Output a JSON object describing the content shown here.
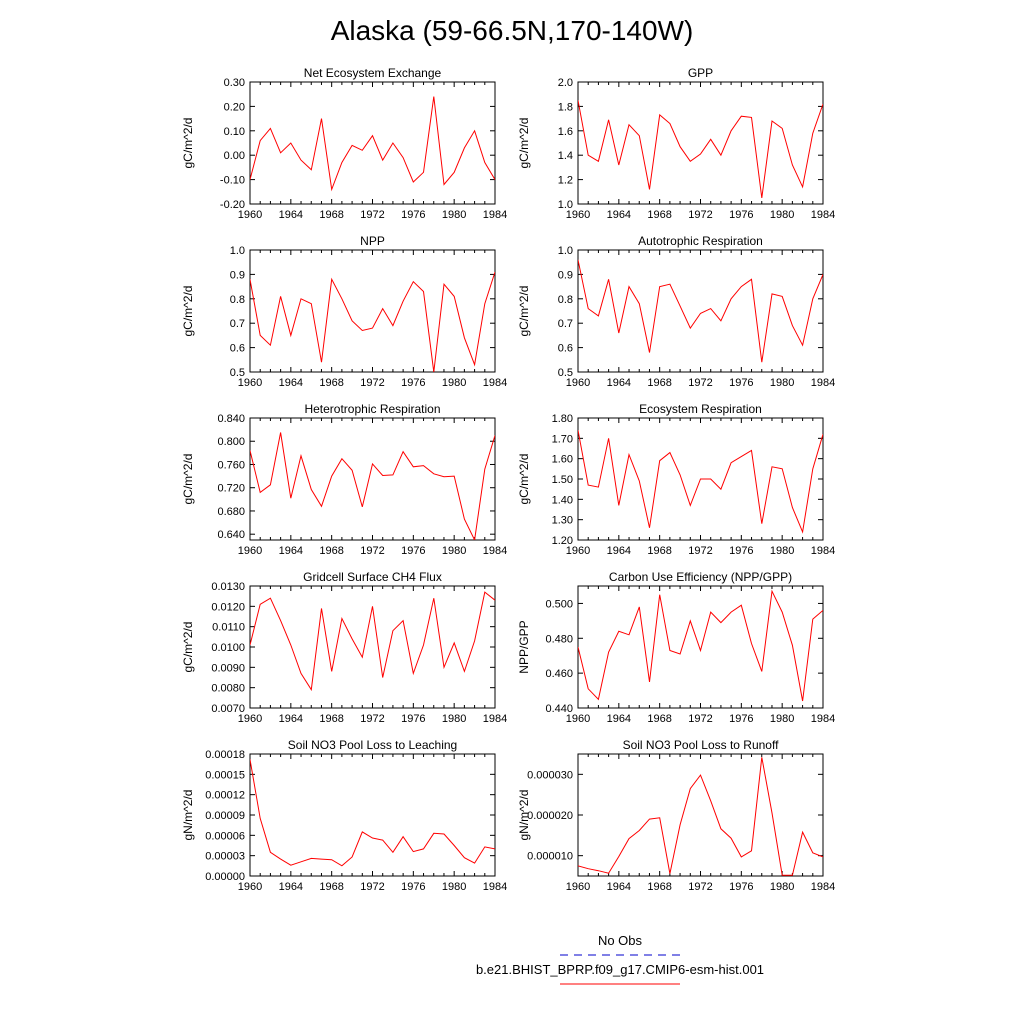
{
  "title": "Alaska (59-66.5N,170-140W)",
  "colors": {
    "series": "#ff0000",
    "obs": "#0000cc",
    "axis": "#000000"
  },
  "legend": {
    "obs_label": "No Obs",
    "model_label": "b.e21.BHIST_BPRP.f09_g17.CMIP6-esm-hist.001"
  },
  "chart_data": [
    {
      "type": "line",
      "title": "Net Ecosystem Exchange",
      "ylabel": "gC/m^2/d",
      "xlim": [
        1960,
        1984
      ],
      "ylim": [
        -0.2,
        0.3
      ],
      "xticks": [
        1960,
        1964,
        1968,
        1972,
        1976,
        1980,
        1984
      ],
      "xtick_labels": [
        "1960",
        "1964",
        "1968",
        "1972",
        "1976",
        "1980",
        "1984"
      ],
      "yticks": [
        -0.2,
        -0.1,
        0.0,
        0.1,
        0.2,
        0.3
      ],
      "ytick_labels": [
        "-0.20",
        "-0.10",
        "0.00",
        "0.10",
        "0.20",
        "0.30"
      ],
      "x": [
        1960,
        1961,
        1962,
        1963,
        1964,
        1965,
        1966,
        1967,
        1968,
        1969,
        1970,
        1971,
        1972,
        1973,
        1974,
        1975,
        1976,
        1977,
        1978,
        1979,
        1980,
        1981,
        1982,
        1983,
        1984
      ],
      "y": [
        -0.1,
        0.06,
        0.11,
        0.01,
        0.05,
        -0.02,
        -0.06,
        0.15,
        -0.14,
        -0.03,
        0.04,
        0.02,
        0.08,
        -0.02,
        0.05,
        -0.01,
        -0.11,
        -0.07,
        0.24,
        -0.12,
        -0.07,
        0.03,
        0.1,
        -0.03,
        -0.1
      ]
    },
    {
      "type": "line",
      "title": "GPP",
      "ylabel": "gC/m^2/d",
      "xlim": [
        1960,
        1984
      ],
      "ylim": [
        1.0,
        2.0
      ],
      "xticks": [
        1960,
        1964,
        1968,
        1972,
        1976,
        1980,
        1984
      ],
      "xtick_labels": [
        "1960",
        "1964",
        "1968",
        "1972",
        "1976",
        "1980",
        "1984"
      ],
      "yticks": [
        1.0,
        1.2,
        1.4,
        1.6,
        1.8,
        2.0
      ],
      "ytick_labels": [
        "1.0",
        "1.2",
        "1.4",
        "1.6",
        "1.8",
        "2.0"
      ],
      "x": [
        1960,
        1961,
        1962,
        1963,
        1964,
        1965,
        1966,
        1967,
        1968,
        1969,
        1970,
        1971,
        1972,
        1973,
        1974,
        1975,
        1976,
        1977,
        1978,
        1979,
        1980,
        1981,
        1982,
        1983,
        1984
      ],
      "y": [
        1.85,
        1.4,
        1.35,
        1.69,
        1.32,
        1.65,
        1.56,
        1.12,
        1.73,
        1.66,
        1.47,
        1.35,
        1.41,
        1.53,
        1.4,
        1.6,
        1.72,
        1.71,
        1.05,
        1.68,
        1.62,
        1.32,
        1.14,
        1.58,
        1.82
      ]
    },
    {
      "type": "line",
      "title": "NPP",
      "ylabel": "gC/m^2/d",
      "xlim": [
        1960,
        1984
      ],
      "ylim": [
        0.5,
        1.0
      ],
      "xticks": [
        1960,
        1964,
        1968,
        1972,
        1976,
        1980,
        1984
      ],
      "xtick_labels": [
        "1960",
        "1964",
        "1968",
        "1972",
        "1976",
        "1980",
        "1984"
      ],
      "yticks": [
        0.5,
        0.6,
        0.7,
        0.8,
        0.9,
        1.0
      ],
      "ytick_labels": [
        "0.5",
        "0.6",
        "0.7",
        "0.8",
        "0.9",
        "1.0"
      ],
      "x": [
        1960,
        1961,
        1962,
        1963,
        1964,
        1965,
        1966,
        1967,
        1968,
        1969,
        1970,
        1971,
        1972,
        1973,
        1974,
        1975,
        1976,
        1977,
        1978,
        1979,
        1980,
        1981,
        1982,
        1983,
        1984
      ],
      "y": [
        0.88,
        0.65,
        0.61,
        0.81,
        0.65,
        0.8,
        0.78,
        0.54,
        0.88,
        0.8,
        0.71,
        0.67,
        0.68,
        0.76,
        0.69,
        0.79,
        0.87,
        0.83,
        0.5,
        0.86,
        0.81,
        0.64,
        0.53,
        0.78,
        0.91
      ]
    },
    {
      "type": "line",
      "title": "Autotrophic Respiration",
      "ylabel": "gC/m^2/d",
      "xlim": [
        1960,
        1984
      ],
      "ylim": [
        0.5,
        1.0
      ],
      "xticks": [
        1960,
        1964,
        1968,
        1972,
        1976,
        1980,
        1984
      ],
      "xtick_labels": [
        "1960",
        "1964",
        "1968",
        "1972",
        "1976",
        "1980",
        "1984"
      ],
      "yticks": [
        0.5,
        0.6,
        0.7,
        0.8,
        0.9,
        1.0
      ],
      "ytick_labels": [
        "0.5",
        "0.6",
        "0.7",
        "0.8",
        "0.9",
        "1.0"
      ],
      "x": [
        1960,
        1961,
        1962,
        1963,
        1964,
        1965,
        1966,
        1967,
        1968,
        1969,
        1970,
        1971,
        1972,
        1973,
        1974,
        1975,
        1976,
        1977,
        1978,
        1979,
        1980,
        1981,
        1982,
        1983,
        1984
      ],
      "y": [
        0.96,
        0.76,
        0.73,
        0.88,
        0.66,
        0.85,
        0.78,
        0.58,
        0.85,
        0.86,
        0.77,
        0.68,
        0.74,
        0.76,
        0.71,
        0.8,
        0.85,
        0.88,
        0.54,
        0.82,
        0.81,
        0.69,
        0.61,
        0.8,
        0.9
      ]
    },
    {
      "type": "line",
      "title": "Heterotrophic Respiration",
      "ylabel": "gC/m^2/d",
      "xlim": [
        1960,
        1984
      ],
      "ylim": [
        0.63,
        0.84
      ],
      "xticks": [
        1960,
        1964,
        1968,
        1972,
        1976,
        1980,
        1984
      ],
      "xtick_labels": [
        "1960",
        "1964",
        "1968",
        "1972",
        "1976",
        "1980",
        "1984"
      ],
      "yticks": [
        0.64,
        0.68,
        0.72,
        0.76,
        0.8,
        0.84
      ],
      "ytick_labels": [
        "0.640",
        "0.680",
        "0.720",
        "0.760",
        "0.800",
        "0.840"
      ],
      "x": [
        1960,
        1961,
        1962,
        1963,
        1964,
        1965,
        1966,
        1967,
        1968,
        1969,
        1970,
        1971,
        1972,
        1973,
        1974,
        1975,
        1976,
        1977,
        1978,
        1979,
        1980,
        1981,
        1982,
        1983,
        1984
      ],
      "y": [
        0.784,
        0.712,
        0.725,
        0.815,
        0.702,
        0.775,
        0.717,
        0.688,
        0.74,
        0.77,
        0.75,
        0.687,
        0.761,
        0.741,
        0.742,
        0.782,
        0.756,
        0.758,
        0.744,
        0.739,
        0.74,
        0.666,
        0.63,
        0.752,
        0.81
      ]
    },
    {
      "type": "line",
      "title": "Ecosystem Respiration",
      "ylabel": "gC/m^2/d",
      "xlim": [
        1960,
        1984
      ],
      "ylim": [
        1.2,
        1.8
      ],
      "xticks": [
        1960,
        1964,
        1968,
        1972,
        1976,
        1980,
        1984
      ],
      "xtick_labels": [
        "1960",
        "1964",
        "1968",
        "1972",
        "1976",
        "1980",
        "1984"
      ],
      "yticks": [
        1.2,
        1.3,
        1.4,
        1.5,
        1.6,
        1.7,
        1.8
      ],
      "ytick_labels": [
        "1.20",
        "1.30",
        "1.40",
        "1.50",
        "1.60",
        "1.70",
        "1.80"
      ],
      "x": [
        1960,
        1961,
        1962,
        1963,
        1964,
        1965,
        1966,
        1967,
        1968,
        1969,
        1970,
        1971,
        1972,
        1973,
        1974,
        1975,
        1976,
        1977,
        1978,
        1979,
        1980,
        1981,
        1982,
        1983,
        1984
      ],
      "y": [
        1.74,
        1.47,
        1.46,
        1.7,
        1.37,
        1.62,
        1.49,
        1.26,
        1.59,
        1.63,
        1.52,
        1.37,
        1.5,
        1.5,
        1.45,
        1.58,
        1.61,
        1.64,
        1.28,
        1.56,
        1.55,
        1.36,
        1.24,
        1.55,
        1.72
      ]
    },
    {
      "type": "line",
      "title": "Gridcell Surface CH4 Flux",
      "ylabel": "gC/m^2/d",
      "xlim": [
        1960,
        1984
      ],
      "ylim": [
        0.007,
        0.013
      ],
      "xticks": [
        1960,
        1964,
        1968,
        1972,
        1976,
        1980,
        1984
      ],
      "xtick_labels": [
        "1960",
        "1964",
        "1968",
        "1972",
        "1976",
        "1980",
        "1984"
      ],
      "yticks": [
        0.007,
        0.008,
        0.009,
        0.01,
        0.011,
        0.012,
        0.013
      ],
      "ytick_labels": [
        "0.0070",
        "0.0080",
        "0.0090",
        "0.0100",
        "0.0110",
        "0.0120",
        "0.0130"
      ],
      "x": [
        1960,
        1961,
        1962,
        1963,
        1964,
        1965,
        1966,
        1967,
        1968,
        1969,
        1970,
        1971,
        1972,
        1973,
        1974,
        1975,
        1976,
        1977,
        1978,
        1979,
        1980,
        1981,
        1982,
        1983,
        1984
      ],
      "y": [
        0.0101,
        0.0121,
        0.0124,
        0.0113,
        0.0101,
        0.0087,
        0.0079,
        0.0119,
        0.0088,
        0.0114,
        0.0104,
        0.0095,
        0.012,
        0.0085,
        0.0108,
        0.0113,
        0.0087,
        0.0101,
        0.0124,
        0.009,
        0.0102,
        0.0088,
        0.0103,
        0.0127,
        0.0123
      ]
    },
    {
      "type": "line",
      "title": "Carbon Use Efficiency (NPP/GPP)",
      "ylabel": "NPP/GPP",
      "xlim": [
        1960,
        1984
      ],
      "ylim": [
        0.44,
        0.51
      ],
      "xticks": [
        1960,
        1964,
        1968,
        1972,
        1976,
        1980,
        1984
      ],
      "xtick_labels": [
        "1960",
        "1964",
        "1968",
        "1972",
        "1976",
        "1980",
        "1984"
      ],
      "yticks": [
        0.44,
        0.46,
        0.48,
        0.5
      ],
      "ytick_labels": [
        "0.440",
        "0.460",
        "0.480",
        "0.500"
      ],
      "x": [
        1960,
        1961,
        1962,
        1963,
        1964,
        1965,
        1966,
        1967,
        1968,
        1969,
        1970,
        1971,
        1972,
        1973,
        1974,
        1975,
        1976,
        1977,
        1978,
        1979,
        1980,
        1981,
        1982,
        1983,
        1984
      ],
      "y": [
        0.475,
        0.451,
        0.445,
        0.472,
        0.484,
        0.482,
        0.498,
        0.455,
        0.505,
        0.473,
        0.471,
        0.49,
        0.473,
        0.495,
        0.489,
        0.495,
        0.499,
        0.477,
        0.461,
        0.507,
        0.495,
        0.476,
        0.444,
        0.491,
        0.496
      ]
    },
    {
      "type": "line",
      "title": "Soil NO3 Pool Loss to Leaching",
      "ylabel": "gN/m^2/d",
      "xlim": [
        1960,
        1984
      ],
      "ylim": [
        0.0,
        0.00018
      ],
      "xticks": [
        1960,
        1964,
        1968,
        1972,
        1976,
        1980,
        1984
      ],
      "xtick_labels": [
        "1960",
        "1964",
        "1968",
        "1972",
        "1976",
        "1980",
        "1984"
      ],
      "yticks": [
        0.0,
        3e-05,
        6e-05,
        9e-05,
        0.00012,
        0.00015,
        0.00018
      ],
      "ytick_labels": [
        "0.00000",
        "0.00003",
        "0.00006",
        "0.00009",
        "0.00012",
        "0.00015",
        "0.00018"
      ],
      "x": [
        1960,
        1961,
        1962,
        1963,
        1964,
        1965,
        1966,
        1967,
        1968,
        1969,
        1970,
        1971,
        1972,
        1973,
        1974,
        1975,
        1976,
        1977,
        1978,
        1979,
        1980,
        1981,
        1982,
        1983,
        1984
      ],
      "y": [
        0.000172,
        8.5e-05,
        3.5e-05,
        2.5e-05,
        1.6e-05,
        2.1e-05,
        2.6e-05,
        2.5e-05,
        2.4e-05,
        1.5e-05,
        2.8e-05,
        6.5e-05,
        5.6e-05,
        5.3e-05,
        3.5e-05,
        5.8e-05,
        3.6e-05,
        4e-05,
        6.3e-05,
        6.2e-05,
        4.5e-05,
        2.7e-05,
        1.9e-05,
        4.3e-05,
        4e-05
      ]
    },
    {
      "type": "line",
      "title": "Soil NO3 Pool Loss to Runoff",
      "ylabel": "gN/m^2/d",
      "xlim": [
        1960,
        1984
      ],
      "ylim": [
        5e-06,
        3.5e-05
      ],
      "xticks": [
        1960,
        1964,
        1968,
        1972,
        1976,
        1980,
        1984
      ],
      "xtick_labels": [
        "1960",
        "1964",
        "1968",
        "1972",
        "1976",
        "1980",
        "1984"
      ],
      "yticks": [
        1e-05,
        2e-05,
        3e-05
      ],
      "ytick_labels": [
        "0.000010",
        "0.000020",
        "0.000030"
      ],
      "x": [
        1960,
        1961,
        1962,
        1963,
        1964,
        1965,
        1966,
        1967,
        1968,
        1969,
        1970,
        1971,
        1972,
        1973,
        1974,
        1975,
        1976,
        1977,
        1978,
        1979,
        1980,
        1981,
        1982,
        1983,
        1984
      ],
      "y": [
        7.5e-06,
        6.8e-06,
        6.3e-06,
        5.7e-06,
        9.8e-06,
        1.42e-05,
        1.62e-05,
        1.9e-05,
        1.93e-05,
        5.6e-06,
        1.76e-05,
        2.65e-05,
        2.98e-05,
        2.35e-05,
        1.66e-05,
        1.43e-05,
        9.7e-06,
        1.12e-05,
        3.42e-05,
        2.05e-05,
        5.2e-06,
        5.2e-06,
        1.58e-05,
        1.07e-05,
        9.7e-06
      ]
    }
  ]
}
